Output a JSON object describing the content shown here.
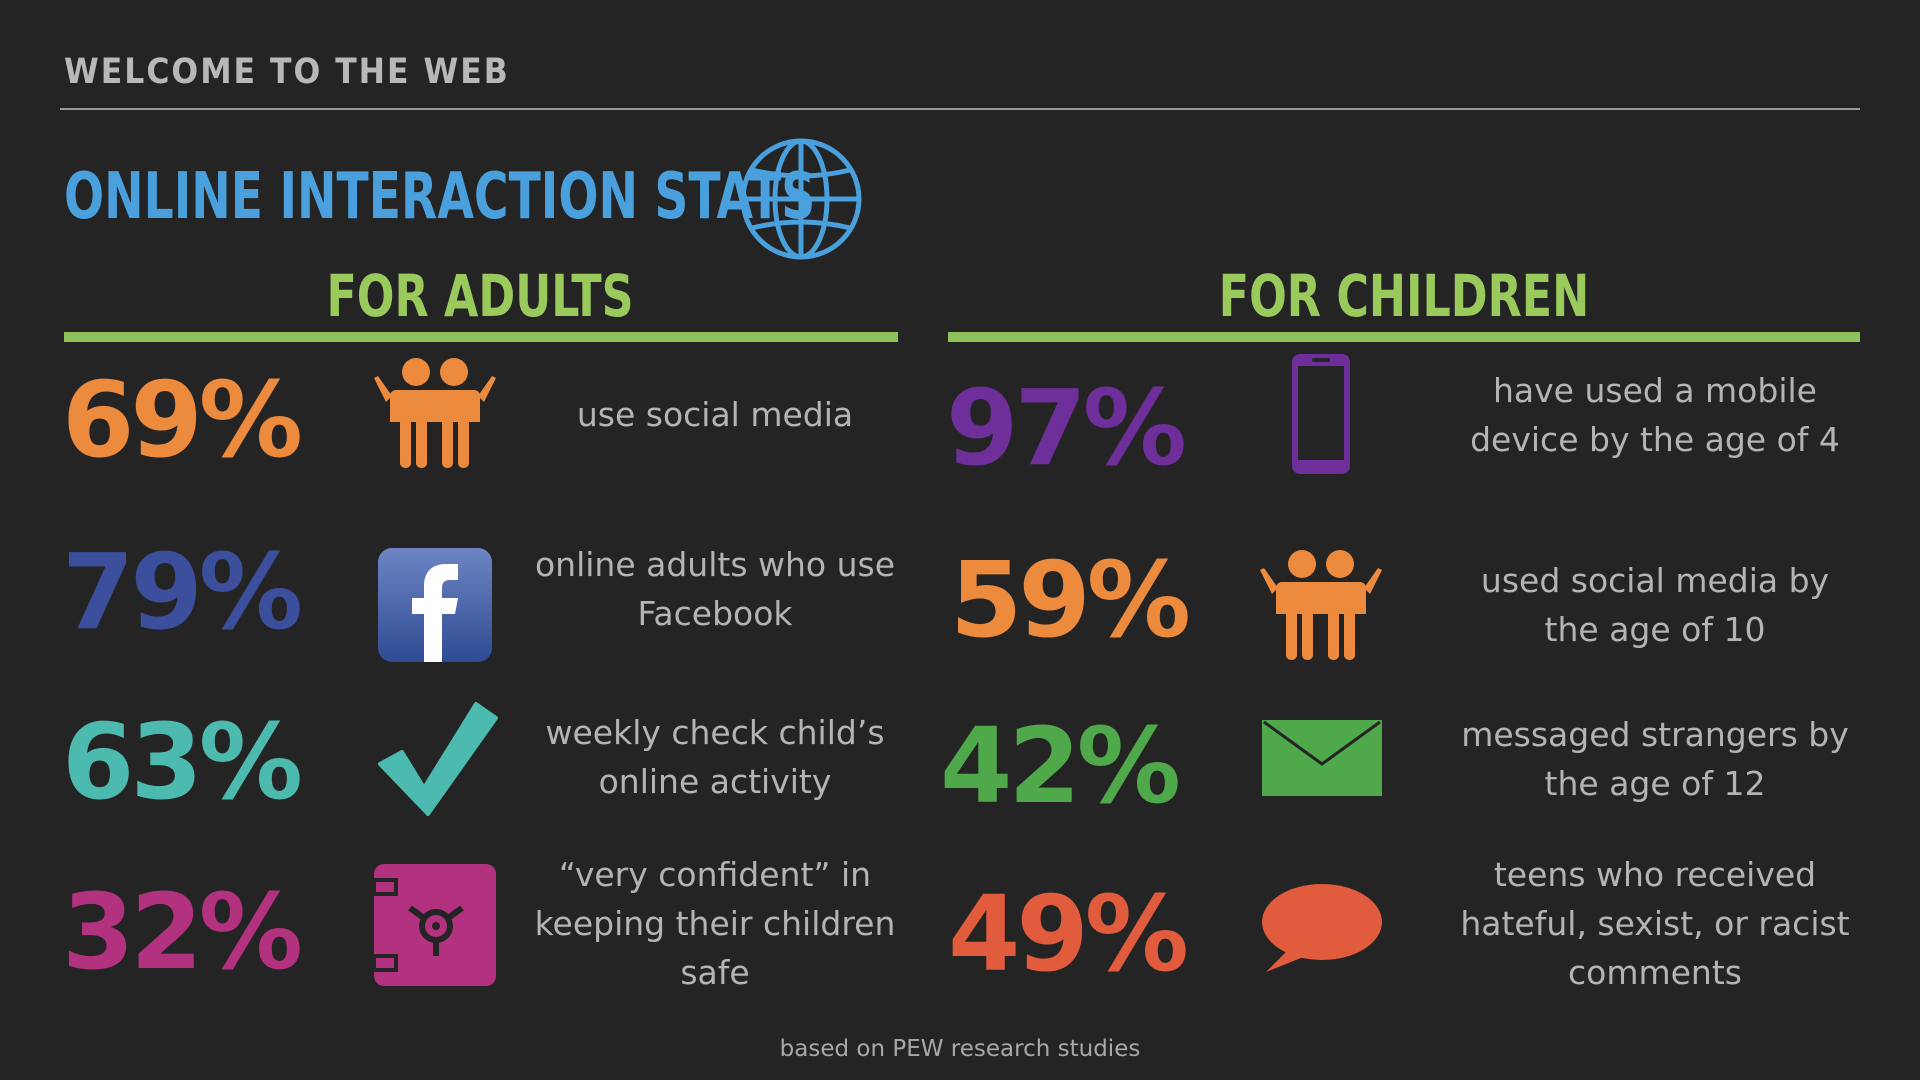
{
  "section_label": "WELCOME TO THE WEB",
  "title": "ONLINE INTERACTION STATS",
  "colors": {
    "background": "#242424",
    "title": "#4aa0dc",
    "heading": "#9ac95c",
    "orange": "#ec8a3e",
    "navy": "#3b4f9c",
    "teal": "#4dbab0",
    "magenta": "#b3327f",
    "purple": "#6e2f9a",
    "green": "#4fa84a",
    "red": "#e05c3c"
  },
  "adults": {
    "heading": "FOR ADULTS",
    "stats": [
      {
        "value": "69%",
        "icon": "people-icon",
        "text": "use social media"
      },
      {
        "value": "79%",
        "icon": "facebook-icon",
        "text": "online adults who use Facebook"
      },
      {
        "value": "63%",
        "icon": "checkmark-icon",
        "text": "weekly check child’s online activity"
      },
      {
        "value": "32%",
        "icon": "safe-icon",
        "text": "“very confident” in keeping their children safe"
      }
    ]
  },
  "children": {
    "heading": "FOR CHILDREN",
    "stats": [
      {
        "value": "97%",
        "icon": "mobile-phone-icon",
        "text": "have used a mobile device by the age of 4"
      },
      {
        "value": "59%",
        "icon": "people-icon",
        "text": "used social media by the age of 10"
      },
      {
        "value": "42%",
        "icon": "envelope-icon",
        "text": "messaged strangers by the age of 12"
      },
      {
        "value": "49%",
        "icon": "speech-bubble-icon",
        "text": "teens who received hateful, sexist, or racist comments"
      }
    ]
  },
  "footnote": "based on PEW research studies"
}
